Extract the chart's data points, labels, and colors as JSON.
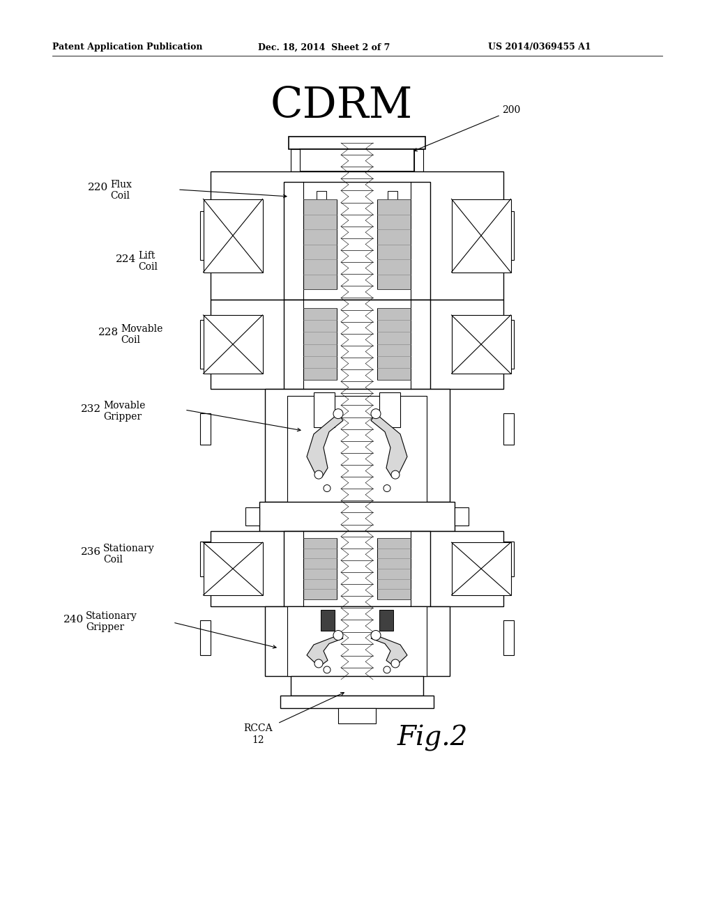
{
  "patent_text": "Patent Application Publication",
  "patent_date": "Dec. 18, 2014  Sheet 2 of 7",
  "patent_num": "US 2014/0369455 A1",
  "title": "CDRM",
  "ref_200": "200",
  "fig_label": "Fig.2",
  "label_220_num": "220",
  "label_220_txt": [
    "Flux",
    "Coil"
  ],
  "label_224_num": "224",
  "label_224_txt": [
    "Lift",
    "Coil"
  ],
  "label_228_num": "228",
  "label_228_txt": [
    "Movable",
    "Coil"
  ],
  "label_232_num": "232",
  "label_232_txt": [
    "Movable",
    "Gripper"
  ],
  "label_236_num": "236",
  "label_236_txt": [
    "Stationary",
    "Coil"
  ],
  "label_240_num": "240",
  "label_240_txt": [
    "Stationary",
    "Gripper"
  ],
  "label_rcca": [
    "RCCA",
    "12"
  ],
  "bg_color": "#ffffff"
}
